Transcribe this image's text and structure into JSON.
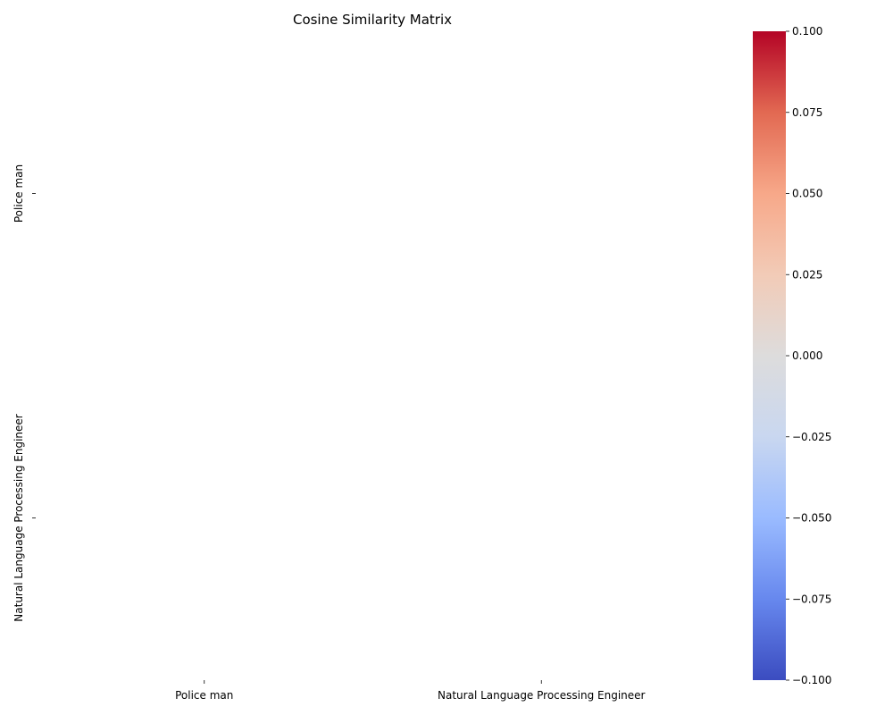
{
  "chart_data": {
    "type": "heatmap",
    "title": "Cosine Similarity Matrix",
    "xlabel": "",
    "ylabel": "",
    "x_categories": [
      "Police man",
      "Natural Language Processing Engineer"
    ],
    "y_categories": [
      "Police man",
      "Natural Language Processing Engineer"
    ],
    "values": [
      [
        null,
        null
      ],
      [
        null,
        null
      ]
    ],
    "colormap": "coolwarm",
    "colorbar": {
      "range": [
        -0.1,
        0.1
      ],
      "ticks": [
        "−0.100",
        "−0.075",
        "−0.050",
        "−0.025",
        "0.000",
        "0.025",
        "0.050",
        "0.075",
        "0.100"
      ],
      "tick_values": [
        -0.1,
        -0.075,
        -0.05,
        -0.025,
        0,
        0.025,
        0.05,
        0.075,
        0.1
      ],
      "colors": [
        "#3b4cc0",
        "#6788ee",
        "#9abbff",
        "#c9d7f0",
        "#dddcdc",
        "#f2cbb7",
        "#f7a889",
        "#e26952",
        "#b40426"
      ]
    },
    "grid": false,
    "legend": "colorbar-right"
  }
}
